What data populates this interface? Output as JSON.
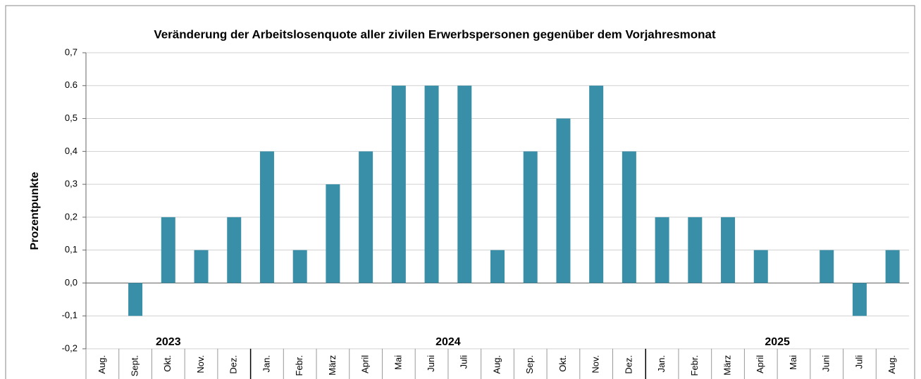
{
  "chart_data": {
    "type": "bar",
    "title": "Veränderung der Arbeitslosenquote  aller zivilen  Erwerbspersonen  gegenüber  dem  Vorjahresmonat",
    "y_label": "Prozentpunkte",
    "groups": [
      {
        "name": "2023",
        "categories": [
          "Aug.",
          "Sept.",
          "Okt.",
          "Nov.",
          "Dez."
        ]
      },
      {
        "name": "2024",
        "categories": [
          "Jan.",
          "Febr.",
          "März",
          "April",
          "Mai",
          "Juni",
          "Juli",
          "Aug.",
          "Sep.",
          "Okt.",
          "Nov.",
          "Dez."
        ]
      },
      {
        "name": "2025",
        "categories": [
          "Jan.",
          "Febr.",
          "März",
          "April",
          "Mai",
          "Juni",
          "Juli",
          "Aug."
        ]
      }
    ],
    "values": [
      0,
      -0.1,
      0.2,
      0.1,
      0.2,
      0.4,
      0.1,
      0.3,
      0.4,
      0.6,
      0.6,
      0.6,
      0.1,
      0.4,
      0.5,
      0.6,
      0.4,
      0.2,
      0.2,
      0.2,
      0.1,
      0,
      0.1,
      -0.1,
      0.1
    ],
    "color": "#3a8fa8",
    "ylim": [
      -0.2,
      0.7
    ],
    "yticks": [
      {
        "value": -0.2,
        "label": "-0,2"
      },
      {
        "value": -0.1,
        "label": "-0,1"
      },
      {
        "value": 0,
        "label": "0,0"
      },
      {
        "value": 0.1,
        "label": "0,1"
      },
      {
        "value": 0.2,
        "label": "0,2"
      },
      {
        "value": 0.3,
        "label": "0,3"
      },
      {
        "value": 0.4,
        "label": "0,4"
      },
      {
        "value": 0.5,
        "label": "0,5"
      },
      {
        "value": 0.6,
        "label": "0.6"
      },
      {
        "value": 0.7,
        "label": "0,7"
      }
    ],
    "grid": true
  }
}
